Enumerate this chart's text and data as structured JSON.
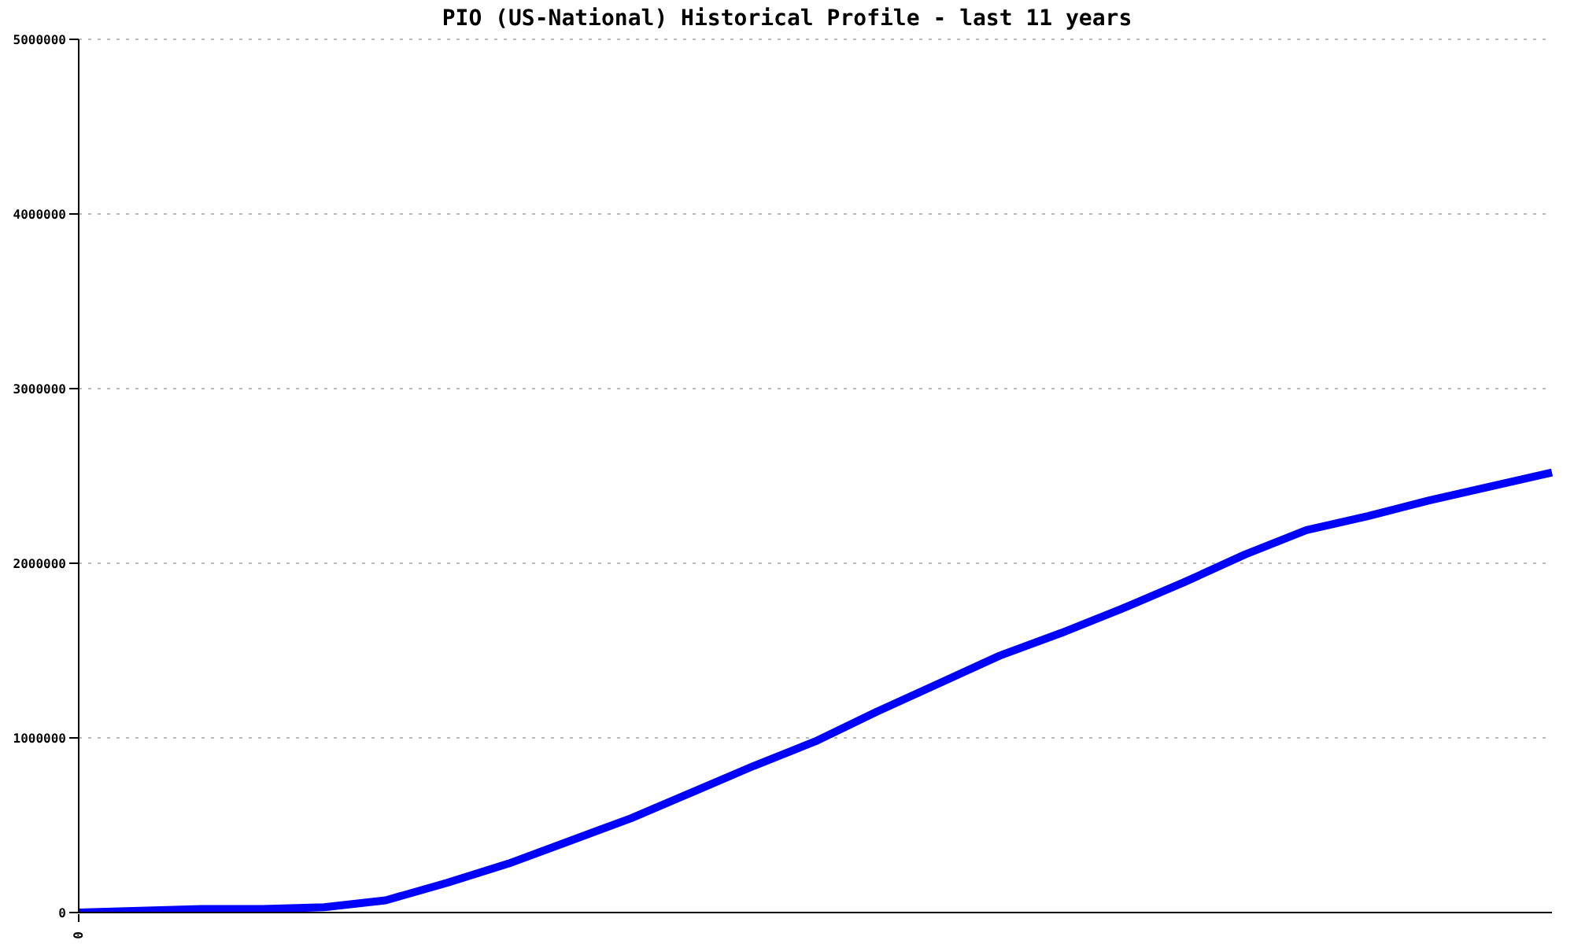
{
  "chart_data": {
    "type": "line",
    "title": "PIO (US-National) Historical Profile - last 11 years",
    "categories": [
      "0",
      null,
      null,
      null,
      null,
      null,
      null,
      null,
      null,
      null,
      null,
      null,
      null,
      null,
      null,
      null,
      null,
      null,
      null,
      null,
      null,
      null,
      null,
      null,
      null
    ],
    "series": [
      {
        "color": "#0000ff",
        "values": [
          0,
          10000,
          20000,
          20000,
          30000,
          70000,
          170000,
          280000,
          410000,
          540000,
          690000,
          840000,
          980000,
          1150000,
          1310000,
          1470000,
          1600000,
          1740000,
          1890000,
          2050000,
          2190000,
          2270000,
          2360000,
          2440000,
          2520000
        ]
      }
    ],
    "ylim": [
      0,
      5000000
    ],
    "yticks": [
      0,
      1000000,
      2000000,
      3000000,
      4000000,
      5000000
    ],
    "grid": "y",
    "marker": "none",
    "line_style": "solid"
  }
}
